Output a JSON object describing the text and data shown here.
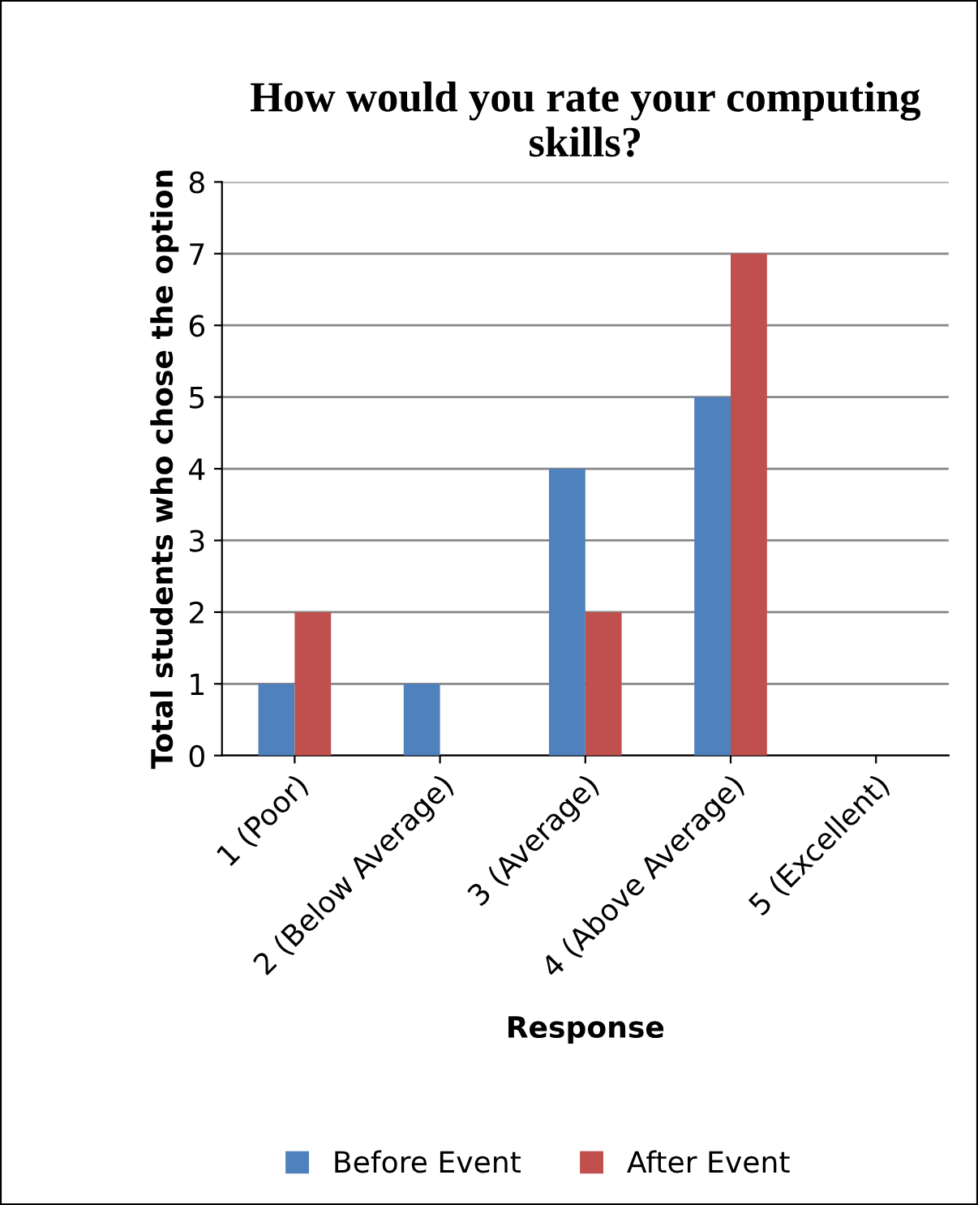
{
  "chart_data": {
    "type": "bar",
    "title": "How would you rate your computing skills?",
    "xlabel": "Response",
    "ylabel": "Total students who chose the option",
    "categories": [
      "1 (Poor)",
      "2 (Below Average)",
      "3 (Average)",
      "4 (Above Average)",
      "5 (Excellent)"
    ],
    "series": [
      {
        "name": "Before Event",
        "color": "#4f81bd",
        "values": [
          1,
          1,
          4,
          5,
          0
        ]
      },
      {
        "name": "After Event",
        "color": "#c0504d",
        "values": [
          2,
          0,
          2,
          7,
          0
        ]
      }
    ],
    "ylim": [
      0,
      8
    ],
    "yticks": [
      0,
      1,
      2,
      3,
      4,
      5,
      6,
      7,
      8
    ],
    "grid": "y",
    "legend": "bottom"
  }
}
